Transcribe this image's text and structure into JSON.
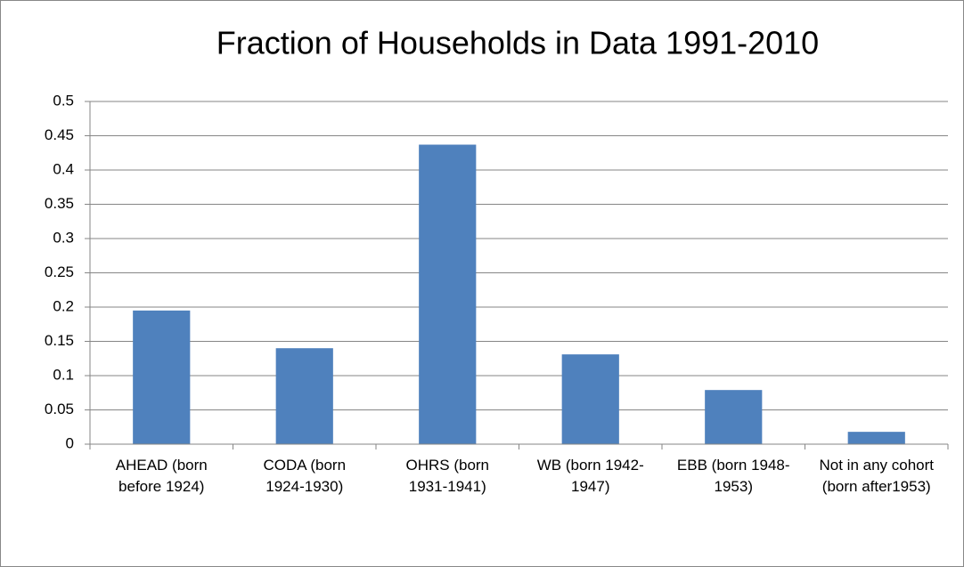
{
  "chart_data": {
    "type": "bar",
    "title": "Fraction of Households in Data 1991-2010",
    "categories": [
      "AHEAD (born before 1924)",
      "CODA (born 1924-1930)",
      "OHRS (born 1931-1941)",
      "WB (born 1942-1947)",
      "EBB (born 1948-1953)",
      "Not in any cohort (born after1953)"
    ],
    "values": [
      0.195,
      0.14,
      0.437,
      0.131,
      0.079,
      0.018
    ],
    "color": "#4f81bd",
    "ylim": [
      0,
      0.5
    ],
    "yticks": [
      0,
      0.05,
      0.1,
      0.15,
      0.2,
      0.25,
      0.3,
      0.35,
      0.4,
      0.45,
      0.5
    ],
    "grid": true
  }
}
